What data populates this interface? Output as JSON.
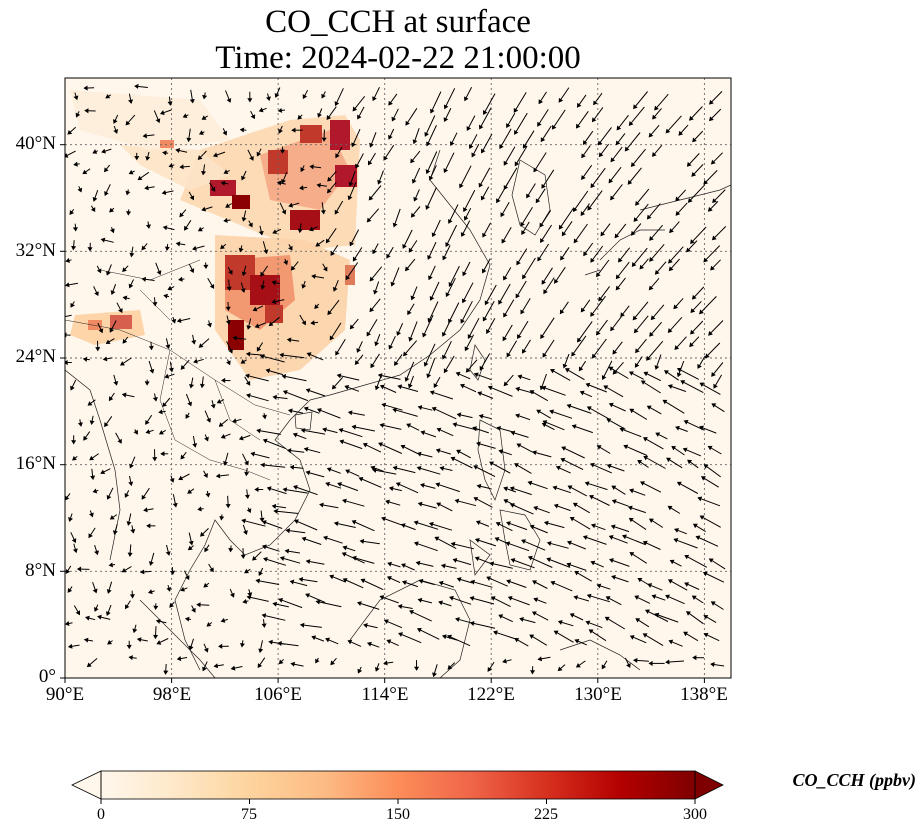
{
  "title": {
    "line1": "CO_CCH at surface",
    "line2": "Time: 2024-02-22 21:00:00"
  },
  "map": {
    "lon_range": [
      90,
      140
    ],
    "lat_range": [
      0,
      45
    ],
    "x_ticks": [
      "90°E",
      "98°E",
      "106°E",
      "114°E",
      "122°E",
      "130°E",
      "138°E"
    ],
    "y_ticks": [
      "0°",
      "8°N",
      "16°N",
      "24°N",
      "32°N",
      "40°N"
    ],
    "gridlines": true,
    "colormap": "OrRd",
    "variable": "CO_CCH",
    "layers": [
      "CO_CCH concentration field",
      "wind vectors",
      "coastlines and borders"
    ]
  },
  "colorbar": {
    "label": "CO_CCH (ppbv)",
    "ticks": [
      "0",
      "75",
      "150",
      "225",
      "300"
    ],
    "range": [
      0,
      300
    ],
    "extend": "both",
    "colors": [
      "#fff7ec",
      "#fdd49e",
      "#fc8d59",
      "#d7301f",
      "#7f0000"
    ]
  }
}
